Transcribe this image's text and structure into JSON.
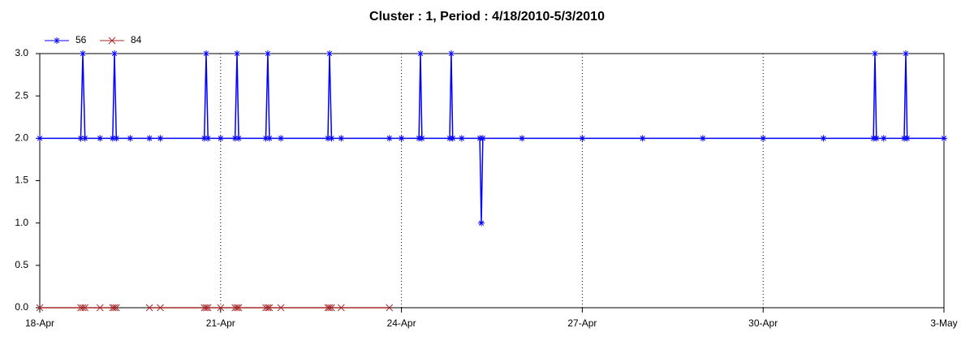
{
  "chart_data": {
    "type": "line",
    "title": "Cluster : 1, Period : 4/18/2010-5/3/2010",
    "x": [
      0,
      0.68,
      0.714,
      0.75,
      1,
      1.21,
      1.239,
      1.27,
      1.5,
      1.82,
      2,
      2.73,
      2.76,
      2.79,
      3,
      3.24,
      3.272,
      3.3,
      3.75,
      3.783,
      3.81,
      4,
      4.78,
      4.807,
      4.84,
      5,
      5.8,
      6,
      6.29,
      6.315,
      6.34,
      6.8,
      6.826,
      6.85,
      7,
      7.3,
      7.325,
      7.35,
      8,
      9,
      10,
      11,
      12,
      13,
      13.83,
      13.855,
      13.88,
      14,
      14.34,
      14.367,
      14.39,
      15
    ],
    "series": [
      {
        "name": "56",
        "color": "#0000ff",
        "marker": "star",
        "values": [
          2,
          2,
          3,
          2,
          2,
          2,
          3,
          2,
          2,
          2,
          2,
          2,
          3,
          2,
          2,
          2,
          3,
          2,
          2,
          3,
          2,
          2,
          2,
          3,
          2,
          2,
          2,
          2,
          2,
          3,
          2,
          2,
          3,
          2,
          2,
          2,
          1,
          2,
          2,
          2,
          2,
          2,
          2,
          2,
          2,
          3,
          2,
          2,
          2,
          3,
          2,
          2
        ]
      },
      {
        "name": "84",
        "color": "#a52a2a",
        "marker": "cross",
        "values": [
          0,
          0,
          0,
          0,
          0,
          0,
          0,
          0,
          null,
          0,
          0,
          0,
          0,
          0,
          0,
          0,
          0,
          0,
          0,
          0,
          0,
          0,
          0,
          0,
          0,
          0,
          0,
          null,
          null,
          null,
          null,
          null,
          null,
          null,
          null,
          null,
          null,
          null,
          null,
          null,
          null,
          null,
          null,
          null,
          null,
          null,
          null,
          null,
          null,
          null,
          null,
          null
        ]
      }
    ],
    "xlim": [
      0,
      15
    ],
    "xticks": [
      {
        "value": 0,
        "label": "18-Apr"
      },
      {
        "value": 3,
        "label": "21-Apr"
      },
      {
        "value": 6,
        "label": "24-Apr"
      },
      {
        "value": 9,
        "label": "27-Apr"
      },
      {
        "value": 12,
        "label": "30-Apr"
      },
      {
        "value": 15,
        "label": "3-May"
      }
    ],
    "ylim": [
      0,
      3
    ],
    "yticks": [
      {
        "value": 0,
        "label": "0.0"
      },
      {
        "value": 0.5,
        "label": "0.5"
      },
      {
        "value": 1,
        "label": "1.0"
      },
      {
        "value": 1.5,
        "label": "1.5"
      },
      {
        "value": 2,
        "label": "2.0"
      },
      {
        "value": 2.5,
        "label": "2.5"
      },
      {
        "value": 3,
        "label": "3.0"
      }
    ],
    "grid": true,
    "legend": "top-left"
  }
}
